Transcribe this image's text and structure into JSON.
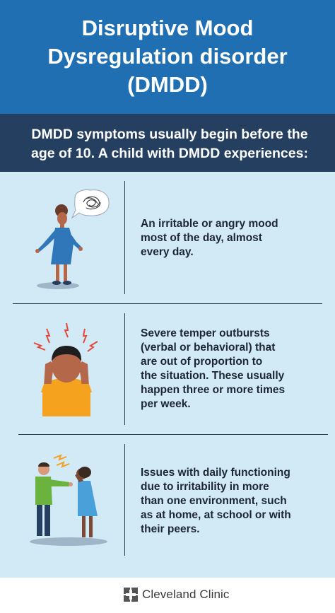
{
  "header": {
    "title_lines": [
      "Disruptive Mood",
      "Dysregulation disorder",
      "(DMDD)"
    ]
  },
  "intro": {
    "lines": [
      "DMDD symptoms usually begin before the",
      "age of 10. A child with DMDD experiences:"
    ]
  },
  "symptoms": [
    {
      "lines": [
        "An irritable or angry mood",
        "most of the day, almost",
        "every day."
      ]
    },
    {
      "lines": [
        "Severe temper outbursts",
        "(verbal or behavioral) that",
        "are out of proportion to",
        "the situation. These usually",
        "happen three or more times",
        "per week."
      ]
    },
    {
      "lines": [
        "Issues with daily functioning",
        "due to irritability in more",
        "than one environment, such",
        "as at home, at school or with",
        "their peers."
      ]
    }
  ],
  "footer": {
    "brand": "Cleveland Clinic"
  },
  "colors": {
    "header_bg": "#1f6fb2",
    "subheader_bg": "#243f60",
    "content_bg": "#d2e9f6"
  }
}
